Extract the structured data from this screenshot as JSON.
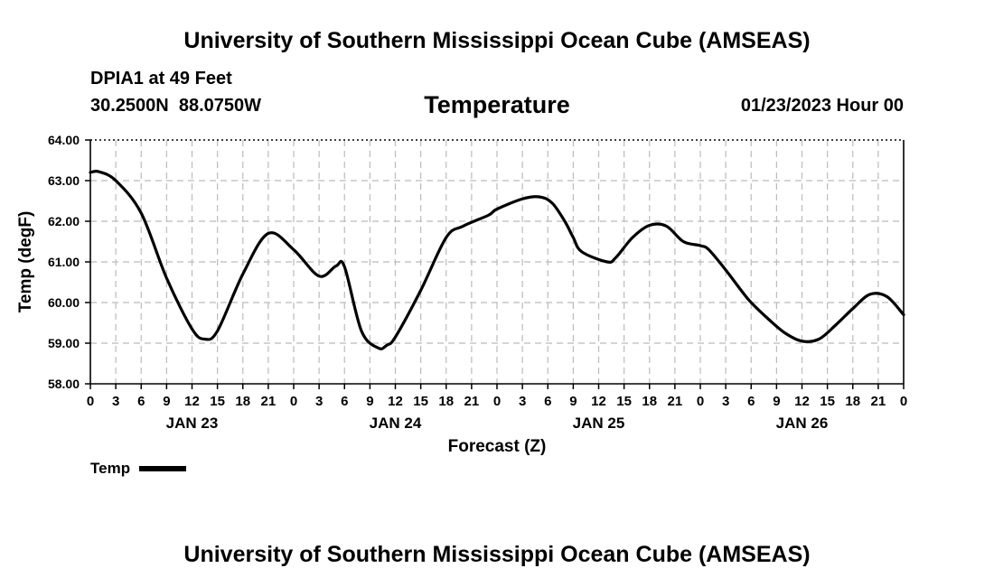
{
  "header": {
    "title": "University of Southern Mississippi Ocean Cube (AMSEAS)",
    "station": "DPIA1 at 49 Feet",
    "coords": "30.2500N  88.0750W",
    "subtitle": "Temperature",
    "datetime": "01/23/2023 Hour 00"
  },
  "footer": {
    "title": "University of Southern Mississippi Ocean Cube (AMSEAS)"
  },
  "legend": {
    "label": "Temp"
  },
  "chart_data": {
    "type": "line",
    "title": "Temperature",
    "xlabel": "Forecast (Z)",
    "ylabel": "Temp (degF)",
    "ylim": [
      58.0,
      64.0
    ],
    "yticks": [
      "58.00",
      "59.00",
      "60.00",
      "61.00",
      "62.00",
      "63.00",
      "64.00"
    ],
    "xlim": [
      0,
      96
    ],
    "xtick_labels": [
      "0",
      "3",
      "6",
      "9",
      "12",
      "15",
      "18",
      "21",
      "0",
      "3",
      "6",
      "9",
      "12",
      "15",
      "18",
      "21",
      "0",
      "3",
      "6",
      "9",
      "12",
      "15",
      "18",
      "21",
      "0",
      "3",
      "6",
      "9",
      "12",
      "15",
      "18",
      "21",
      "0"
    ],
    "day_labels": [
      {
        "hour": 12,
        "label": "JAN 23"
      },
      {
        "hour": 36,
        "label": "JAN 24"
      },
      {
        "hour": 60,
        "label": "JAN 25"
      },
      {
        "hour": 84,
        "label": "JAN 26"
      }
    ],
    "grid": true,
    "series": [
      {
        "name": "Temp",
        "color": "#000000",
        "x": [
          0,
          1,
          3,
          6,
          9,
          12,
          13.5,
          15,
          18,
          21,
          24,
          27,
          29,
          30,
          32,
          34,
          35,
          36,
          39,
          42,
          44,
          47,
          48,
          51,
          53,
          54.5,
          56,
          57,
          58,
          61,
          62,
          64,
          66,
          68,
          70,
          72,
          73,
          75,
          77,
          78,
          80,
          82,
          84,
          86,
          88,
          90,
          92,
          94,
          96
        ],
        "values": [
          63.2,
          63.22,
          63.0,
          62.2,
          60.6,
          59.35,
          59.1,
          59.3,
          60.7,
          61.7,
          61.3,
          60.65,
          60.9,
          60.88,
          59.3,
          58.88,
          58.95,
          59.15,
          60.3,
          61.6,
          61.88,
          62.15,
          62.3,
          62.55,
          62.6,
          62.45,
          62.0,
          61.6,
          61.25,
          61.0,
          61.1,
          61.6,
          61.9,
          61.88,
          61.5,
          61.4,
          61.3,
          60.8,
          60.25,
          60.0,
          59.6,
          59.25,
          59.05,
          59.1,
          59.45,
          59.85,
          60.2,
          60.15,
          59.7
        ]
      }
    ]
  }
}
